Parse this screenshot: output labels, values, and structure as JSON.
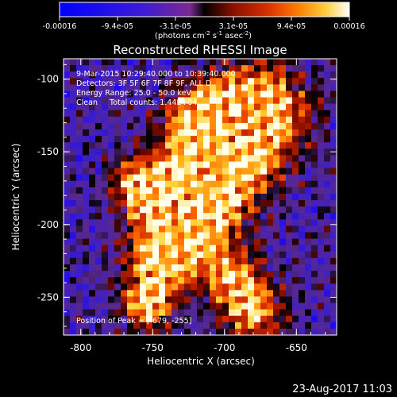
{
  "chart_data": {
    "type": "heatmap",
    "title": "Reconstructed RHESSI Image",
    "xlabel": "Heliocentric X (arcsec)",
    "ylabel": "Heliocentric Y (arcsec)",
    "xlim": [
      -812,
      -622
    ],
    "ylim": [
      -276,
      -86
    ],
    "xticks": [
      "-800",
      "-750",
      "-700",
      "-650"
    ],
    "yticks": [
      "-100",
      "-150",
      "-200",
      "-250"
    ],
    "colorbar": {
      "ticks": [
        "-0.00016",
        "-9.4e-05",
        "-3.1e-05",
        "3.1e-05",
        "9.4e-05",
        "0.00016"
      ],
      "label_main": "(photons cm",
      "label_sup1": "-2",
      "label_mid1": " s",
      "label_sup2": "-1",
      "label_mid2": " asec",
      "label_sup3": "-2",
      "label_end": ")",
      "range": [
        -0.00016,
        0.00016
      ]
    },
    "annotations": [
      "9-Mar-2015 10:29:40.000 to 10:39:40.000",
      "Detectors: 3F 5F 6F 7F 8F 9F, ALL D",
      "Energy Range: 25.0 - 50.0 keV",
      "Clean     Total counts: 1.44E+04"
    ],
    "peak_label": "Position of Peak = [-679, -255]",
    "peak": [
      -679,
      -255
    ],
    "grid": false
  },
  "footer": {
    "date": "23-Aug-2017 11:03"
  }
}
